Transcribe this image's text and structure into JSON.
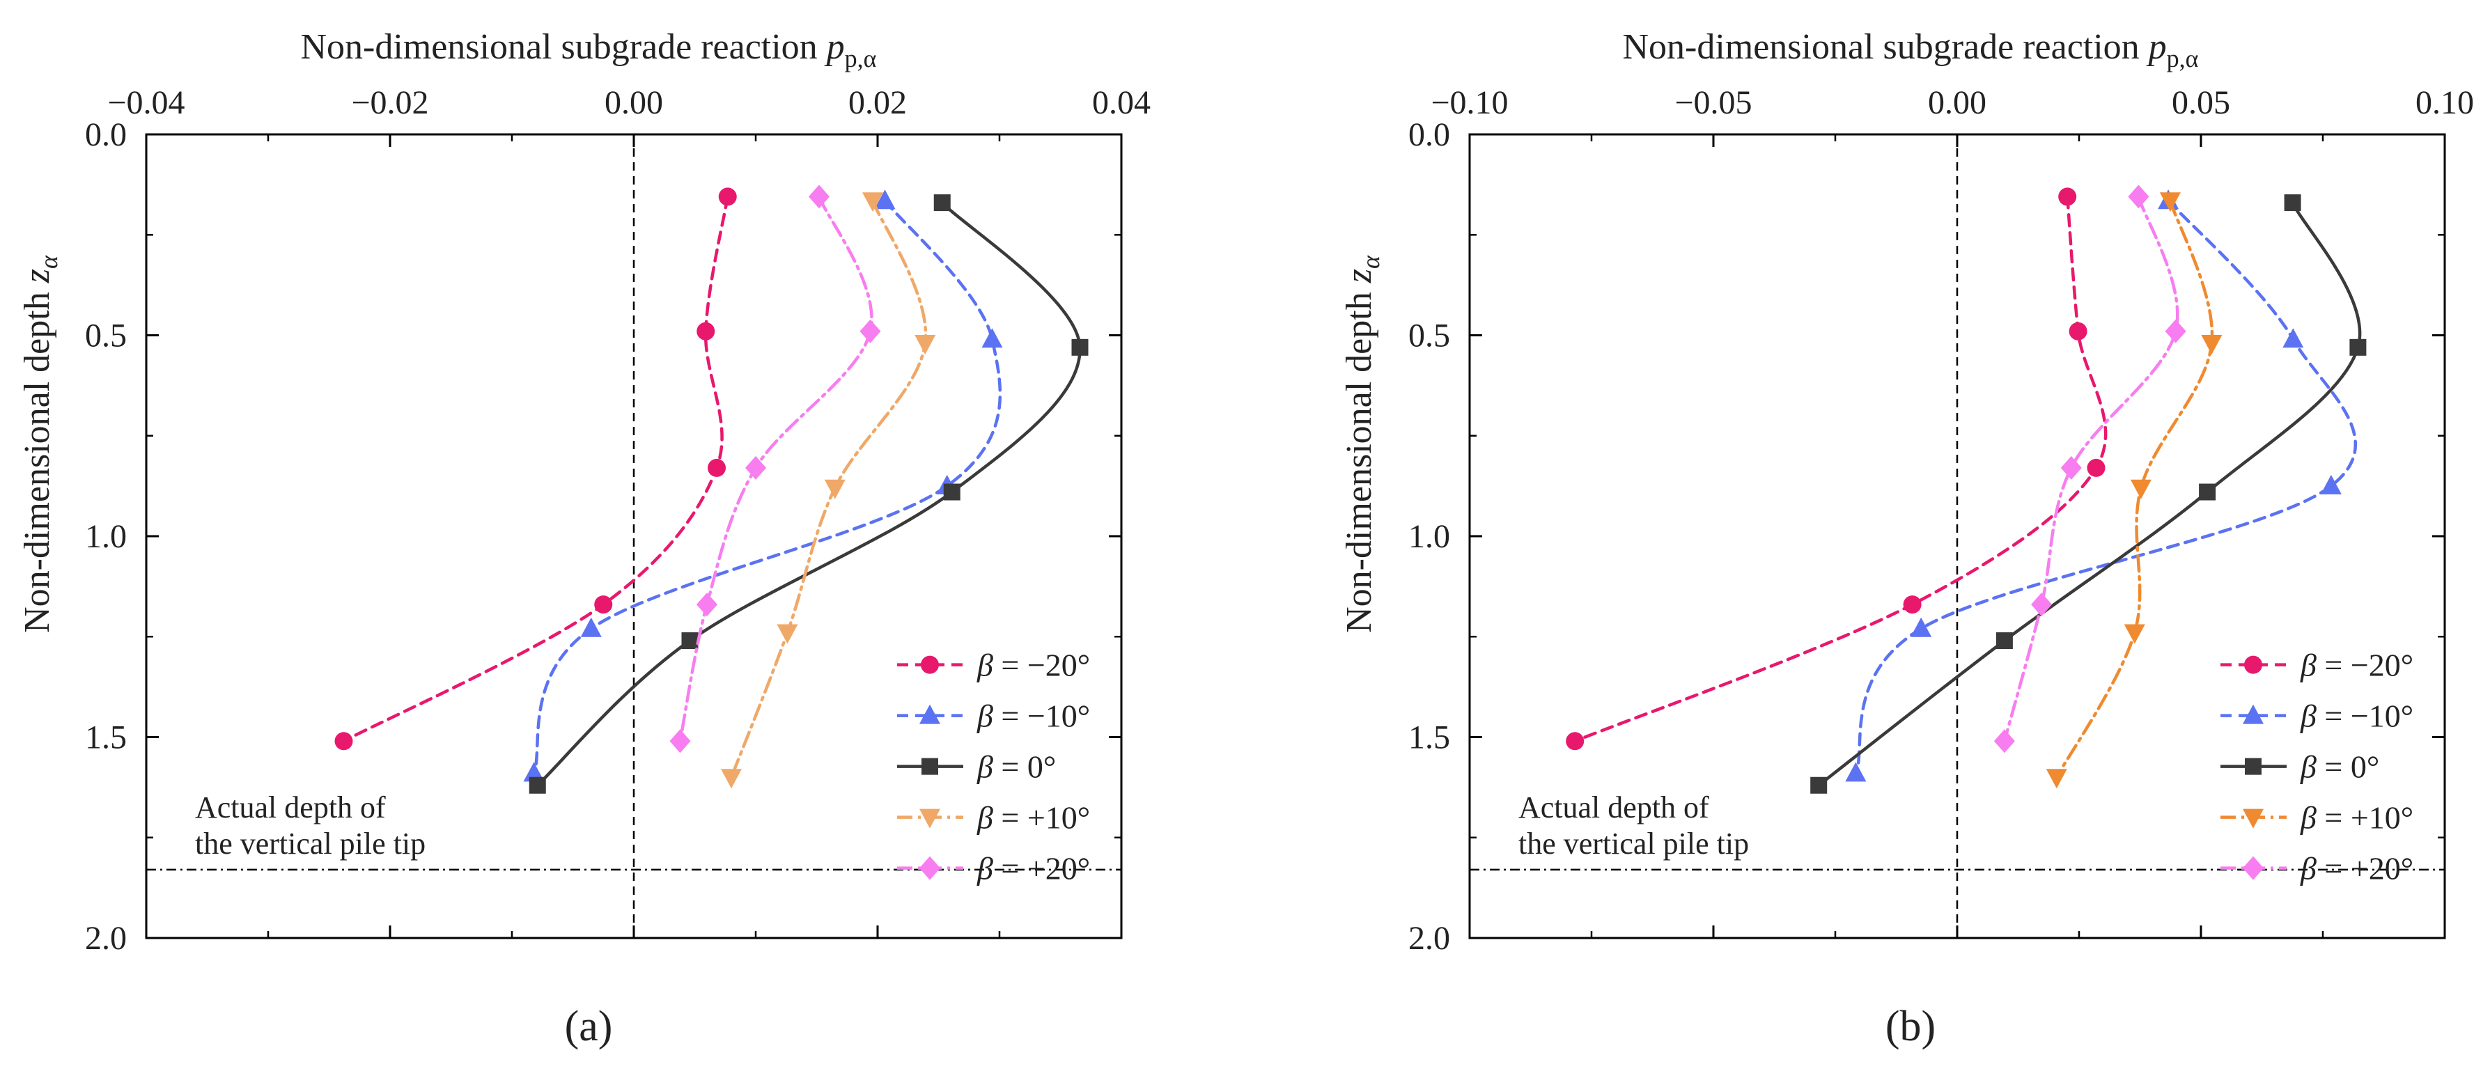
{
  "chart_data": [
    {
      "type": "line",
      "panel_label": "(a)",
      "xlabel": "Non-dimensional subgrade reaction",
      "xlabel_symbol": "p",
      "xlabel_subscript": "p,α",
      "ylabel": "Non-dimensional depth",
      "ylabel_symbol": "z",
      "ylabel_subscript": "α",
      "xlim": [
        -0.04,
        0.04
      ],
      "ylim": [
        0.0,
        2.0
      ],
      "y_inverted": true,
      "x_ticks": [
        -0.04,
        -0.02,
        0.0,
        0.02,
        0.04
      ],
      "x_tick_labels": [
        "−0.04",
        "−0.02",
        "0.00",
        "0.02",
        "0.04"
      ],
      "y_ticks": [
        0.0,
        0.5,
        1.0,
        1.5,
        2.0
      ],
      "y_tick_labels": [
        "0.0",
        "0.5",
        "1.0",
        "1.5",
        "2.0"
      ],
      "pile_tip_depth": 1.83,
      "pile_tip_label": [
        "Actual depth of",
        "the vertical pile tip"
      ],
      "legend_position": "bottom-right",
      "series": [
        {
          "name": "β = −20°",
          "sym": "β",
          "val": " = −20°",
          "color": "#e8186d",
          "marker": "circle",
          "dash": "16,10",
          "x": [
            0.0077,
            0.0059,
            0.0068,
            -0.0025,
            -0.0238
          ],
          "y": [
            0.155,
            0.49,
            0.83,
            1.17,
            1.51
          ]
        },
        {
          "name": "β = −10°",
          "sym": "β",
          "val": " = −10°",
          "color": "#5b72f2",
          "marker": "triangle-up",
          "dash": "16,10",
          "x": [
            0.0206,
            0.0294,
            0.0257,
            -0.0035,
            -0.0082
          ],
          "y": [
            0.165,
            0.51,
            0.875,
            1.23,
            1.59
          ]
        },
        {
          "name": "β = 0°",
          "sym": "β",
          "val": " = 0°",
          "color": "#3a3a3a",
          "marker": "square",
          "dash": "",
          "x": [
            0.0253,
            0.0366,
            0.0261,
            0.0046,
            -0.0079
          ],
          "y": [
            0.17,
            0.53,
            0.89,
            1.26,
            1.62
          ]
        },
        {
          "name": "β = +10°",
          "sym": "β",
          "val": " = +10°",
          "color": "#f0a868",
          "marker": "triangle-down",
          "dash": "22,8,4,8",
          "x": [
            0.0196,
            0.0239,
            0.0165,
            0.0126,
            0.008
          ],
          "y": [
            0.165,
            0.52,
            0.88,
            1.24,
            1.6
          ]
        },
        {
          "name": "β = +20°",
          "sym": "β",
          "val": " = +20°",
          "color": "#f77df0",
          "marker": "diamond",
          "dash": "22,8,4,8",
          "x": [
            0.0152,
            0.0194,
            0.01,
            0.006,
            0.0038
          ],
          "y": [
            0.155,
            0.49,
            0.83,
            1.17,
            1.51
          ]
        }
      ]
    },
    {
      "type": "line",
      "panel_label": "(b)",
      "xlabel": "Non-dimensional subgrade reaction",
      "xlabel_symbol": "p",
      "xlabel_subscript": "p,α",
      "ylabel": "Non-dimensional depth",
      "ylabel_symbol": "z",
      "ylabel_subscript": "α",
      "xlim": [
        -0.1,
        0.1
      ],
      "ylim": [
        0.0,
        2.0
      ],
      "y_inverted": true,
      "x_ticks": [
        -0.1,
        -0.05,
        0.0,
        0.05,
        0.1
      ],
      "x_tick_labels": [
        "−0.10",
        "−0.05",
        "0.00",
        "0.05",
        "0.10"
      ],
      "y_ticks": [
        0.0,
        0.5,
        1.0,
        1.5,
        2.0
      ],
      "y_tick_labels": [
        "0.0",
        "0.5",
        "1.0",
        "1.5",
        "2.0"
      ],
      "pile_tip_depth": 1.83,
      "pile_tip_label": [
        "Actual depth of",
        "the vertical pile tip"
      ],
      "legend_position": "bottom-right",
      "series": [
        {
          "name": "β = −20°",
          "sym": "β",
          "val": " = −20°",
          "color": "#e8186d",
          "marker": "circle",
          "dash": "16,10",
          "x": [
            0.0226,
            0.0248,
            0.0285,
            -0.0092,
            -0.0784
          ],
          "y": [
            0.155,
            0.49,
            0.83,
            1.17,
            1.51
          ]
        },
        {
          "name": "β = −10°",
          "sym": "β",
          "val": " = −10°",
          "color": "#5b72f2",
          "marker": "triangle-up",
          "dash": "16,10",
          "x": [
            0.0433,
            0.0689,
            0.0767,
            -0.0074,
            -0.0208
          ],
          "y": [
            0.165,
            0.51,
            0.875,
            1.23,
            1.59
          ]
        },
        {
          "name": "β = 0°",
          "sym": "β",
          "val": " = 0°",
          "color": "#3a3a3a",
          "marker": "square",
          "dash": "",
          "x": [
            0.0688,
            0.0822,
            0.0513,
            0.0097,
            -0.0284
          ],
          "y": [
            0.17,
            0.53,
            0.89,
            1.26,
            1.62
          ]
        },
        {
          "name": "β = +10°",
          "sym": "β",
          "val": " = +10°",
          "color": "#f08a30",
          "marker": "triangle-down",
          "dash": "22,8,4,8",
          "x": [
            0.0437,
            0.0522,
            0.0377,
            0.0364,
            0.0204
          ],
          "y": [
            0.165,
            0.52,
            0.88,
            1.24,
            1.6
          ]
        },
        {
          "name": "β = +20°",
          "sym": "β",
          "val": " = +20°",
          "color": "#f77df0",
          "marker": "diamond",
          "dash": "22,8,4,8",
          "x": [
            0.0372,
            0.0448,
            0.0234,
            0.0173,
            0.0097
          ],
          "y": [
            0.155,
            0.49,
            0.83,
            1.17,
            1.51
          ]
        }
      ]
    }
  ]
}
